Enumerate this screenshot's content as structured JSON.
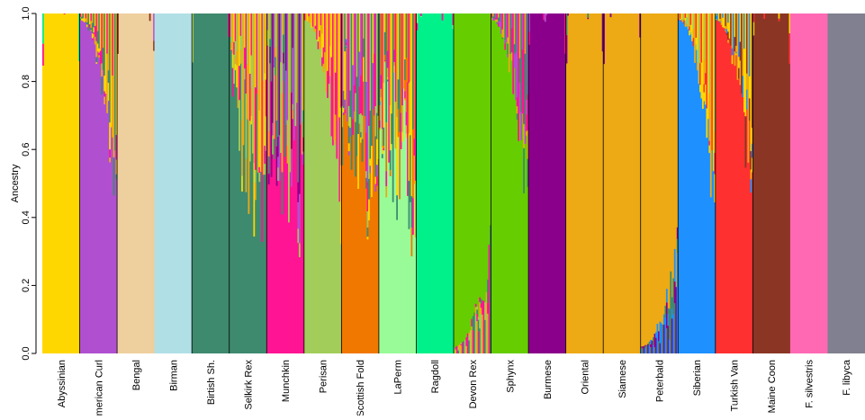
{
  "chart_data": {
    "type": "bar",
    "subtype": "stacked-structure-admixture",
    "ylabel": "Ancestry",
    "ylim": [
      0,
      1
    ],
    "yticks": [
      0.0,
      0.2,
      0.4,
      0.6,
      0.8,
      1.0
    ],
    "ytick_labels": [
      "0.0",
      "0.2",
      "0.4",
      "0.6",
      "0.8",
      "1.0"
    ],
    "grid": false,
    "legend": "none",
    "cluster_colors": {
      "gold": "#FFD700",
      "purple": "#B050D0",
      "tan": "#EECF9E",
      "lightblue": "#B0E0E6",
      "teal": "#3E8A6E",
      "pink": "#FF1493",
      "olive": "#A2CD5A",
      "orange": "#F07800",
      "lightgreen": "#98FB98",
      "spring": "#00F08A",
      "green": "#66CD00",
      "darkmagenta": "#8B008B",
      "amber": "#EDAA14",
      "blue": "#1E90FF",
      "red": "#FF3030",
      "brown": "#8B3624",
      "hotpink": "#FF69B4",
      "gray": "#808090"
    },
    "categories": [
      {
        "name": "Abyssinian",
        "main": "gold",
        "mix": "none",
        "minor": [
          "spring",
          "pink",
          "olive"
        ]
      },
      {
        "name": "American Curl",
        "main": "purple",
        "mix": "top",
        "minor": [
          "pink",
          "amber",
          "teal",
          "gold"
        ]
      },
      {
        "name": "Bengal",
        "main": "tan",
        "mix": "none",
        "minor": [
          "brown",
          "purple"
        ]
      },
      {
        "name": "Birman",
        "main": "lightblue",
        "mix": "none",
        "minor": []
      },
      {
        "name": "Birtish Sh.",
        "main": "teal",
        "mix": "none",
        "minor": [
          "olive",
          "pink"
        ]
      },
      {
        "name": "Selkirk Rex",
        "main": "teal",
        "mix": "heavy",
        "minor": [
          "pink",
          "olive",
          "amber",
          "gold"
        ]
      },
      {
        "name": "Munchkin",
        "main": "pink",
        "mix": "heavy",
        "minor": [
          "purple",
          "olive",
          "amber",
          "teal",
          "darkmagenta"
        ]
      },
      {
        "name": "Perisan",
        "main": "olive",
        "mix": "top",
        "minor": [
          "pink",
          "amber",
          "gold"
        ]
      },
      {
        "name": "Scottish Fold",
        "main": "orange",
        "mix": "heavy",
        "minor": [
          "pink",
          "olive",
          "teal",
          "gold",
          "purple"
        ]
      },
      {
        "name": "LaPerm",
        "main": "lightgreen",
        "mix": "heavy",
        "minor": [
          "teal",
          "orange",
          "pink",
          "amber",
          "gold"
        ]
      },
      {
        "name": "Ragdoll",
        "main": "spring",
        "mix": "none",
        "minor": [
          "lightgreen",
          "pink"
        ]
      },
      {
        "name": "Devon Rex",
        "main": "green",
        "mix": "bottom",
        "minor": [
          "olive",
          "amber",
          "pink",
          "teal"
        ]
      },
      {
        "name": "Sphynx",
        "main": "green",
        "mix": "top",
        "minor": [
          "pink",
          "amber",
          "teal",
          "purple"
        ]
      },
      {
        "name": "Burmese",
        "main": "darkmagenta",
        "mix": "none",
        "minor": [
          "purple",
          "pink"
        ]
      },
      {
        "name": "Oriental",
        "main": "amber",
        "mix": "none",
        "minor": [
          "teal",
          "darkmagenta"
        ]
      },
      {
        "name": "Siamese",
        "main": "amber",
        "mix": "none",
        "minor": [
          "darkmagenta"
        ]
      },
      {
        "name": "Peterbald",
        "main": "amber",
        "mix": "bottom",
        "minor": [
          "blue",
          "teal",
          "darkmagenta"
        ]
      },
      {
        "name": "Siberian",
        "main": "blue",
        "mix": "top",
        "minor": [
          "amber",
          "red",
          "gold",
          "olive"
        ]
      },
      {
        "name": "Turkish Van",
        "main": "red",
        "mix": "top",
        "minor": [
          "amber",
          "blue",
          "gold",
          "brown"
        ]
      },
      {
        "name": "Maine Coon",
        "main": "brown",
        "mix": "none",
        "minor": [
          "red",
          "gold"
        ]
      },
      {
        "name": "F. silvestris",
        "main": "hotpink",
        "mix": "none",
        "minor": []
      },
      {
        "name": "F. libyca",
        "main": "gray",
        "mix": "none",
        "minor": []
      }
    ]
  }
}
